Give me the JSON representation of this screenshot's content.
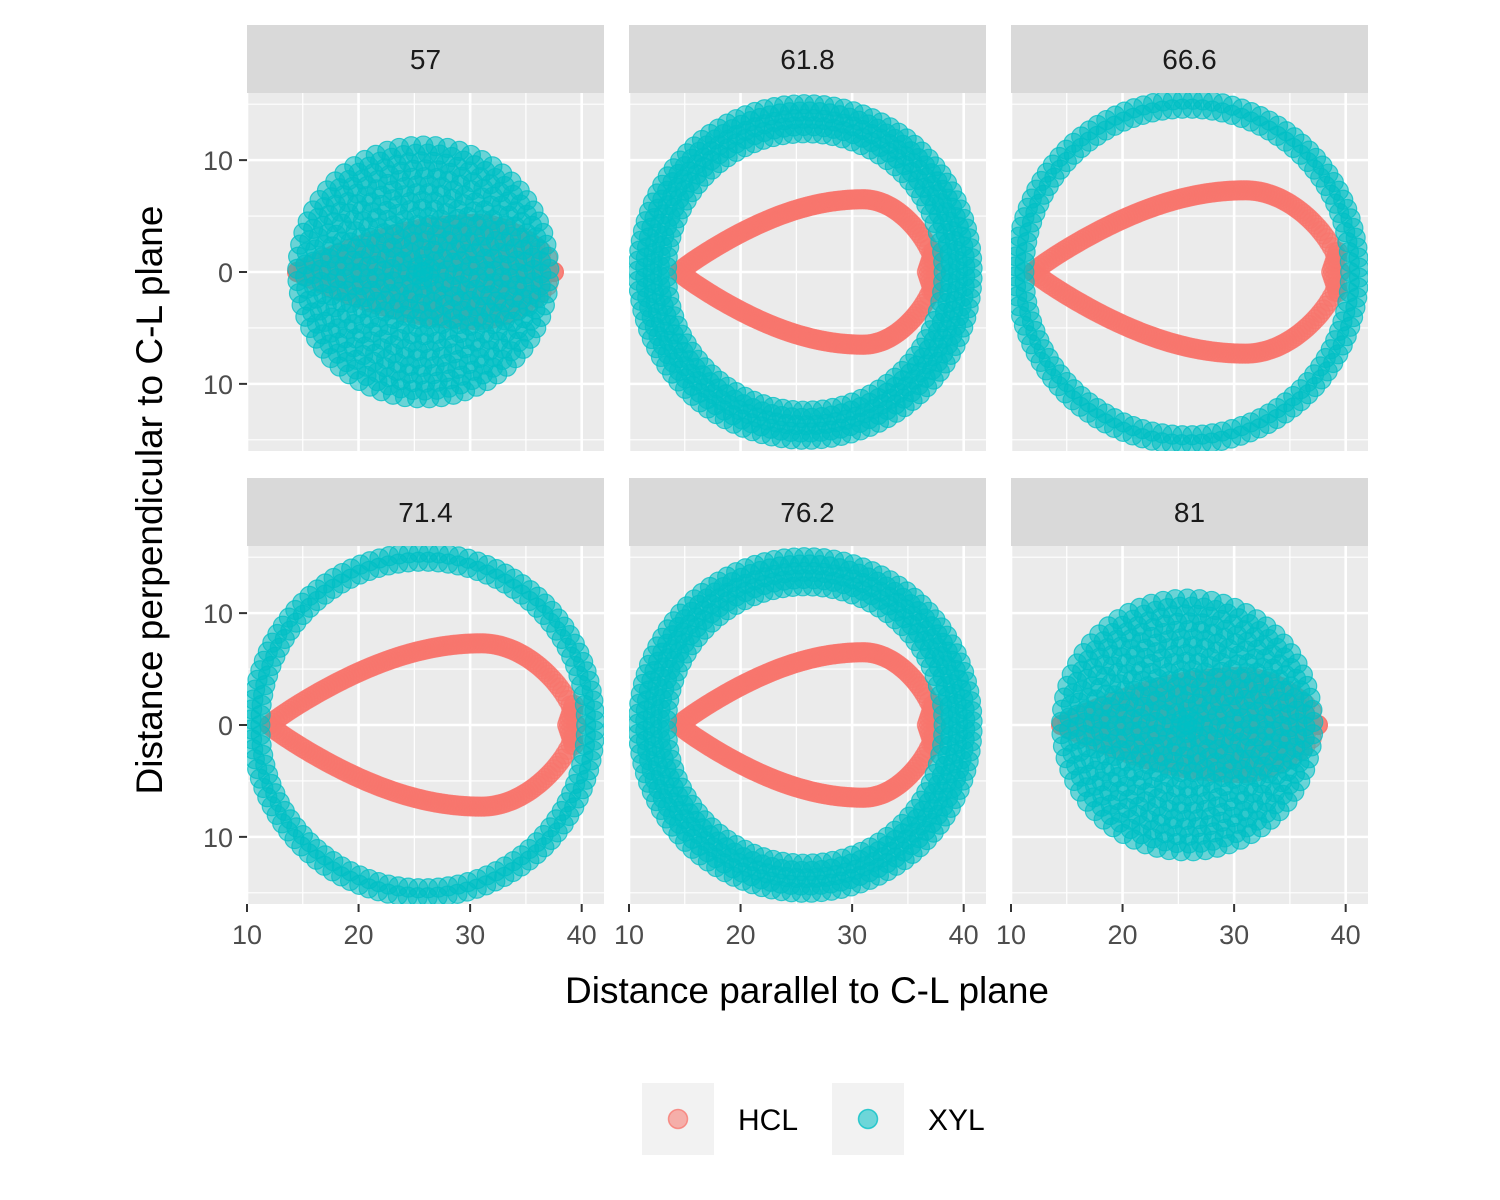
{
  "chart_data": {
    "type": "scatter",
    "layout": "facet_wrap",
    "xlabel": "Distance parallel to C-L plane",
    "ylabel": "Distance perpendicular to C-L plane",
    "xlim": [
      10,
      42
    ],
    "ylim": [
      -16,
      16
    ],
    "x_ticks": [
      10,
      20,
      30,
      40
    ],
    "x_tick_labels": [
      "10",
      "20",
      "30",
      "40"
    ],
    "y_ticks": [
      10,
      0,
      -10
    ],
    "y_tick_labels": [
      "10",
      "0",
      "10"
    ],
    "grid": true,
    "legend_position": "bottom",
    "series": [
      {
        "name": "HCL",
        "color": "#F8766D"
      },
      {
        "name": "XYL",
        "color": "#00BFC4"
      }
    ],
    "panels": [
      {
        "label": "57",
        "HCL": {
          "kind": "filled",
          "x_min": 14.5,
          "x_max": 37.5,
          "y_half_max": 4.3,
          "peak_x": 30.5
        },
        "XYL": {
          "kind": "disc",
          "center_x": 25.8,
          "center_y": 0,
          "radius": 11.3
        }
      },
      {
        "label": "61.8",
        "HCL": {
          "kind": "teardrop",
          "x_min": 14.5,
          "x_max": 37.5,
          "y_half_max": 6.5,
          "peak_x": 31
        },
        "XYL": {
          "kind": "ring",
          "center_x": 25.8,
          "center_y": 0,
          "radius": 13.7,
          "band_width": 2.6
        }
      },
      {
        "label": "66.6",
        "HCL": {
          "kind": "teardrop",
          "x_min": 12,
          "x_max": 39.5,
          "y_half_max": 7.3,
          "peak_x": 31
        },
        "XYL": {
          "kind": "ring",
          "center_x": 25.8,
          "center_y": 0,
          "radius": 15.0,
          "band_width": 0.8
        }
      },
      {
        "label": "71.4",
        "HCL": {
          "kind": "teardrop",
          "x_min": 12,
          "x_max": 39.5,
          "y_half_max": 7.3,
          "peak_x": 31
        },
        "XYL": {
          "kind": "ring",
          "center_x": 25.8,
          "center_y": 0,
          "radius": 15.0,
          "band_width": 0.8
        }
      },
      {
        "label": "76.2",
        "HCL": {
          "kind": "teardrop",
          "x_min": 14.5,
          "x_max": 37.5,
          "y_half_max": 6.5,
          "peak_x": 31
        },
        "XYL": {
          "kind": "ring",
          "center_x": 25.8,
          "center_y": 0,
          "radius": 13.7,
          "band_width": 2.6
        }
      },
      {
        "label": "81",
        "HCL": {
          "kind": "filled",
          "x_min": 14.5,
          "x_max": 37.5,
          "y_half_max": 4.3,
          "peak_x": 30.5
        },
        "XYL": {
          "kind": "disc",
          "center_x": 25.8,
          "center_y": 0,
          "radius": 11.3
        }
      }
    ]
  }
}
